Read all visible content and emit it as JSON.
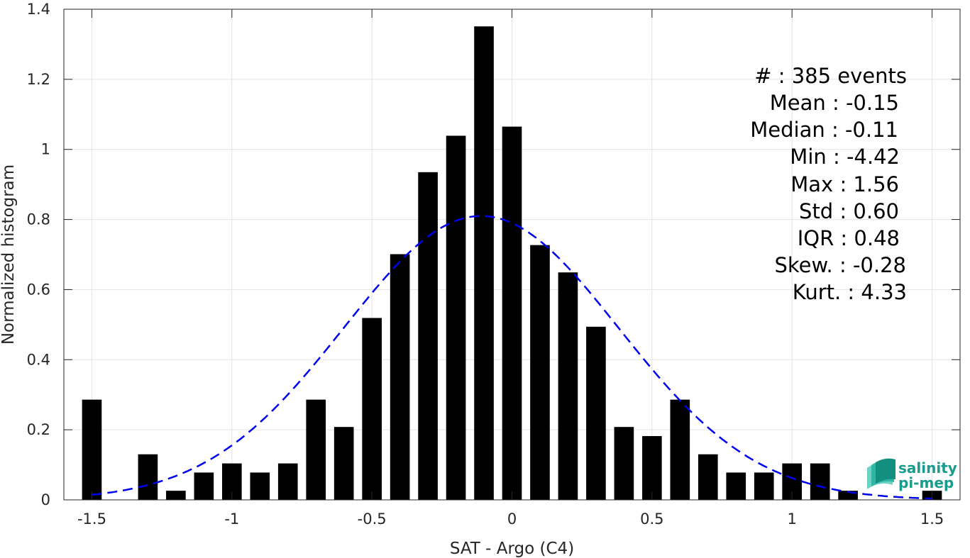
{
  "chart_data": {
    "type": "bar",
    "xlabel": "SAT - Argo (C4)",
    "ylabel": "Normalized histogram",
    "xlim": [
      -1.6,
      1.6
    ],
    "ylim": [
      0,
      1.4
    ],
    "xticks": [
      -1.5,
      -1,
      -0.5,
      0,
      0.5,
      1,
      1.5
    ],
    "xtick_labels": [
      "-1.5",
      "-1",
      "-0.5",
      "0",
      "0.5",
      "1",
      "1.5"
    ],
    "yticks": [
      0,
      0.2,
      0.4,
      0.6,
      0.8,
      1,
      1.2,
      1.4
    ],
    "ytick_labels": [
      "0",
      "0.2",
      "0.4",
      "0.6",
      "0.8",
      "1",
      "1.2",
      "1.4"
    ],
    "grid": true,
    "bar_width": 0.07,
    "bar_color": "#000000",
    "bars": [
      {
        "x": -1.5,
        "y": 0.286
      },
      {
        "x": -1.3,
        "y": 0.13
      },
      {
        "x": -1.2,
        "y": 0.026
      },
      {
        "x": -1.1,
        "y": 0.078
      },
      {
        "x": -1.0,
        "y": 0.104
      },
      {
        "x": -0.9,
        "y": 0.078
      },
      {
        "x": -0.8,
        "y": 0.104
      },
      {
        "x": -0.7,
        "y": 0.286
      },
      {
        "x": -0.6,
        "y": 0.208
      },
      {
        "x": -0.5,
        "y": 0.519
      },
      {
        "x": -0.4,
        "y": 0.701
      },
      {
        "x": -0.3,
        "y": 0.935
      },
      {
        "x": -0.2,
        "y": 1.039
      },
      {
        "x": -0.1,
        "y": 1.351
      },
      {
        "x": 0.0,
        "y": 1.065
      },
      {
        "x": 0.1,
        "y": 0.727
      },
      {
        "x": 0.2,
        "y": 0.649
      },
      {
        "x": 0.3,
        "y": 0.494
      },
      {
        "x": 0.4,
        "y": 0.208
      },
      {
        "x": 0.5,
        "y": 0.182
      },
      {
        "x": 0.6,
        "y": 0.286
      },
      {
        "x": 0.7,
        "y": 0.13
      },
      {
        "x": 0.8,
        "y": 0.078
      },
      {
        "x": 0.9,
        "y": 0.078
      },
      {
        "x": 1.0,
        "y": 0.104
      },
      {
        "x": 1.1,
        "y": 0.104
      },
      {
        "x": 1.2,
        "y": 0.026
      },
      {
        "x": 1.5,
        "y": 0.026
      }
    ],
    "fit_curve": {
      "style": "dashed",
      "color": "#0000ee",
      "mean": -0.11,
      "std": 0.49,
      "peak": 0.81,
      "x_range": [
        -1.5,
        1.5
      ]
    },
    "stats_lines": [
      "#  : 385 events",
      "Mean : -0.15",
      "Median : -0.11",
      "Min : -4.42",
      "Max : 1.56",
      "Std : 0.60",
      "IQR : 0.48",
      "Skew. : -0.28",
      "Kurt. : 4.33"
    ],
    "logo": {
      "line1": "salinity",
      "line2": "pi-mep"
    }
  }
}
